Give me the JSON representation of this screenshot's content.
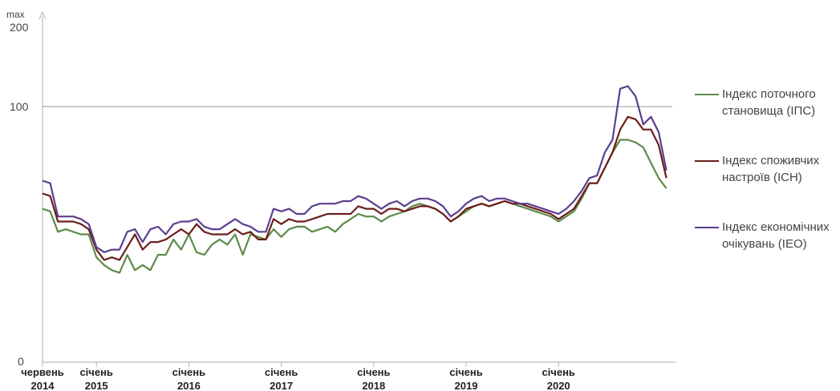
{
  "chart_data": {
    "type": "line",
    "title": "",
    "xlabel": "",
    "ylabel": "",
    "ylim": [
      0,
      200
    ],
    "yticks": [
      {
        "value": 0,
        "label": "0"
      },
      {
        "value": 100,
        "label": "100"
      },
      {
        "value": 200,
        "label": "200"
      }
    ],
    "ymax_label": "max",
    "reference_line": 100,
    "xticks": [
      {
        "date": "2014-06",
        "line1": "червень",
        "line2": "2014"
      },
      {
        "date": "2015-01",
        "line1": "січень",
        "line2": "2015"
      },
      {
        "date": "2016-01",
        "line1": "січень",
        "line2": "2016"
      },
      {
        "date": "2017-01",
        "line1": "січень",
        "line2": "2017"
      },
      {
        "date": "2018-01",
        "line1": "січень",
        "line2": "2018"
      },
      {
        "date": "2019-01",
        "line1": "січень",
        "line2": "2019"
      },
      {
        "date": "2020-01",
        "line1": "січень",
        "line2": "2020"
      }
    ],
    "start": "2014-06",
    "legend_position": "right",
    "series": [
      {
        "name": "Індекс поточного становища (ІПС)",
        "color": "#5e8b4a",
        "values": [
          60,
          59,
          51,
          52,
          51,
          50,
          50,
          41,
          38,
          36,
          35,
          42,
          36,
          38,
          36,
          42,
          42,
          48,
          44,
          50,
          43,
          42,
          46,
          48,
          46,
          50,
          42,
          50,
          49,
          48,
          52,
          49,
          52,
          53,
          53,
          51,
          52,
          53,
          51,
          54,
          56,
          58,
          57,
          57,
          55,
          57,
          58,
          59,
          61,
          62,
          61,
          60,
          58,
          55,
          57,
          59,
          61,
          62,
          61,
          62,
          63,
          62,
          61,
          60,
          59,
          58,
          57,
          55,
          57,
          59,
          64,
          70,
          70,
          76,
          82,
          87,
          87,
          86,
          84,
          78,
          72,
          68
        ]
      },
      {
        "name": "Індекс споживчих настроїв (ІСН)",
        "color": "#6b1e1a",
        "values": [
          66,
          65,
          55,
          55,
          55,
          54,
          52,
          44,
          40,
          41,
          40,
          45,
          50,
          44,
          47,
          47,
          48,
          50,
          52,
          50,
          54,
          51,
          50,
          50,
          50,
          52,
          50,
          51,
          48,
          48,
          56,
          54,
          56,
          55,
          55,
          56,
          57,
          58,
          58,
          58,
          58,
          61,
          60,
          60,
          58,
          60,
          60,
          59,
          60,
          61,
          61,
          60,
          58,
          55,
          57,
          60,
          61,
          62,
          61,
          62,
          63,
          62,
          62,
          61,
          60,
          59,
          58,
          56,
          58,
          60,
          65,
          70,
          70,
          76,
          82,
          91,
          96,
          95,
          91,
          91,
          85,
          72
        ]
      },
      {
        "name": "Індекс економічних очікувань (ІЕО)",
        "color": "#5b3f8f",
        "values": [
          71,
          70,
          57,
          57,
          57,
          56,
          54,
          45,
          43,
          44,
          44,
          51,
          52,
          47,
          52,
          53,
          50,
          54,
          55,
          55,
          56,
          53,
          52,
          52,
          54,
          56,
          54,
          53,
          51,
          51,
          60,
          59,
          60,
          58,
          58,
          61,
          62,
          62,
          62,
          63,
          63,
          65,
          64,
          62,
          60,
          62,
          63,
          61,
          63,
          64,
          64,
          63,
          61,
          57,
          59,
          62,
          64,
          65,
          63,
          64,
          64,
          63,
          62,
          62,
          61,
          60,
          59,
          58,
          60,
          63,
          67,
          72,
          73,
          82,
          87,
          107,
          108,
          104,
          93,
          96,
          90,
          75
        ]
      }
    ]
  }
}
